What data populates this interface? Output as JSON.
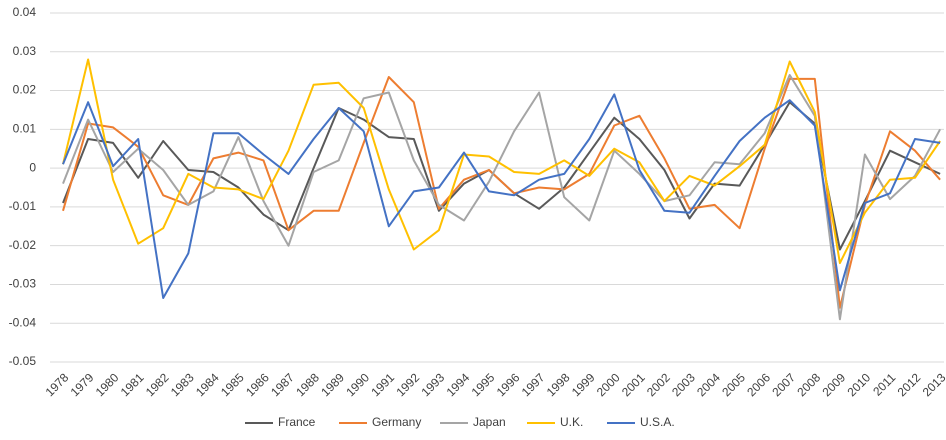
{
  "chart_data": {
    "type": "line",
    "categories": [
      "1978",
      "1979",
      "1980",
      "1981",
      "1982",
      "1983",
      "1984",
      "1985",
      "1986",
      "1987",
      "1988",
      "1989",
      "1990",
      "1991",
      "1992",
      "1993",
      "1994",
      "1995",
      "1996",
      "1997",
      "1998",
      "1999",
      "2000",
      "2001",
      "2002",
      "2003",
      "2004",
      "2005",
      "2006",
      "2007",
      "2008",
      "2009",
      "2010",
      "2011",
      "2012",
      "2013"
    ],
    "series": [
      {
        "name": "France",
        "color": "#595959",
        "values": [
          -0.009,
          0.0075,
          0.0065,
          -0.0025,
          0.007,
          -0.0005,
          -0.001,
          -0.005,
          -0.012,
          -0.016,
          0.0,
          0.0155,
          0.0125,
          0.008,
          0.0075,
          -0.011,
          -0.004,
          -0.0005,
          -0.0065,
          -0.0105,
          -0.005,
          0.004,
          0.013,
          0.0075,
          -0.0005,
          -0.013,
          -0.004,
          -0.0045,
          0.006,
          0.017,
          0.0115,
          -0.021,
          -0.0085,
          0.0045,
          0.0015,
          -0.0015
        ]
      },
      {
        "name": "Germany",
        "color": "#ed7d31",
        "values": [
          -0.011,
          0.0115,
          0.0105,
          0.0055,
          -0.007,
          -0.0095,
          0.0025,
          0.004,
          0.002,
          -0.016,
          -0.011,
          -0.011,
          0.0065,
          0.0235,
          0.017,
          -0.0105,
          -0.003,
          -0.0005,
          -0.0065,
          -0.005,
          -0.0055,
          -0.0015,
          0.011,
          0.0135,
          0.0025,
          -0.0105,
          -0.0095,
          -0.0155,
          0.005,
          0.023,
          0.023,
          -0.036,
          -0.0095,
          0.0095,
          0.0045,
          -0.003
        ]
      },
      {
        "name": "Japan",
        "color": "#a5a5a5",
        "values": [
          -0.004,
          0.0125,
          -0.001,
          0.005,
          -0.0005,
          -0.0095,
          -0.006,
          0.008,
          -0.0085,
          -0.02,
          -0.001,
          0.002,
          0.018,
          0.0195,
          0.002,
          -0.0095,
          -0.0135,
          -0.0035,
          0.0095,
          0.0195,
          -0.0075,
          -0.0135,
          0.0045,
          -0.0015,
          -0.0085,
          -0.007,
          0.0015,
          0.001,
          0.009,
          0.024,
          0.0135,
          -0.039,
          0.0035,
          -0.008,
          -0.002,
          0.01
        ]
      },
      {
        "name": "U.K.",
        "color": "#ffc000",
        "values": [
          0.001,
          0.028,
          -0.003,
          -0.0195,
          -0.0155,
          -0.0015,
          -0.005,
          -0.0055,
          -0.008,
          0.0045,
          0.0215,
          0.022,
          0.0155,
          -0.0055,
          -0.021,
          -0.016,
          0.0035,
          0.003,
          -0.001,
          -0.0015,
          0.002,
          -0.002,
          0.005,
          0.0015,
          -0.0085,
          -0.002,
          -0.0045,
          0.0005,
          0.006,
          0.0275,
          0.0145,
          -0.0245,
          -0.0115,
          -0.003,
          -0.0025,
          0.007
        ]
      },
      {
        "name": "U.S.A.",
        "color": "#4472c4",
        "values": [
          0.001,
          0.017,
          0.0005,
          0.0075,
          -0.0335,
          -0.022,
          0.009,
          0.009,
          0.0035,
          -0.0015,
          0.0075,
          0.0155,
          0.0095,
          -0.015,
          -0.006,
          -0.005,
          0.004,
          -0.006,
          -0.007,
          -0.003,
          -0.0015,
          0.0075,
          0.019,
          -0.0005,
          -0.011,
          -0.0115,
          -0.002,
          0.007,
          0.013,
          0.0175,
          0.011,
          -0.0315,
          -0.009,
          -0.0065,
          0.0075,
          0.0065
        ]
      }
    ],
    "ylim": [
      -0.05,
      0.04
    ],
    "yticks": [
      -0.05,
      -0.04,
      -0.03,
      -0.02,
      -0.01,
      0,
      0.01,
      0.02,
      0.03,
      0.04
    ],
    "grid": true,
    "legend": "bottom"
  }
}
